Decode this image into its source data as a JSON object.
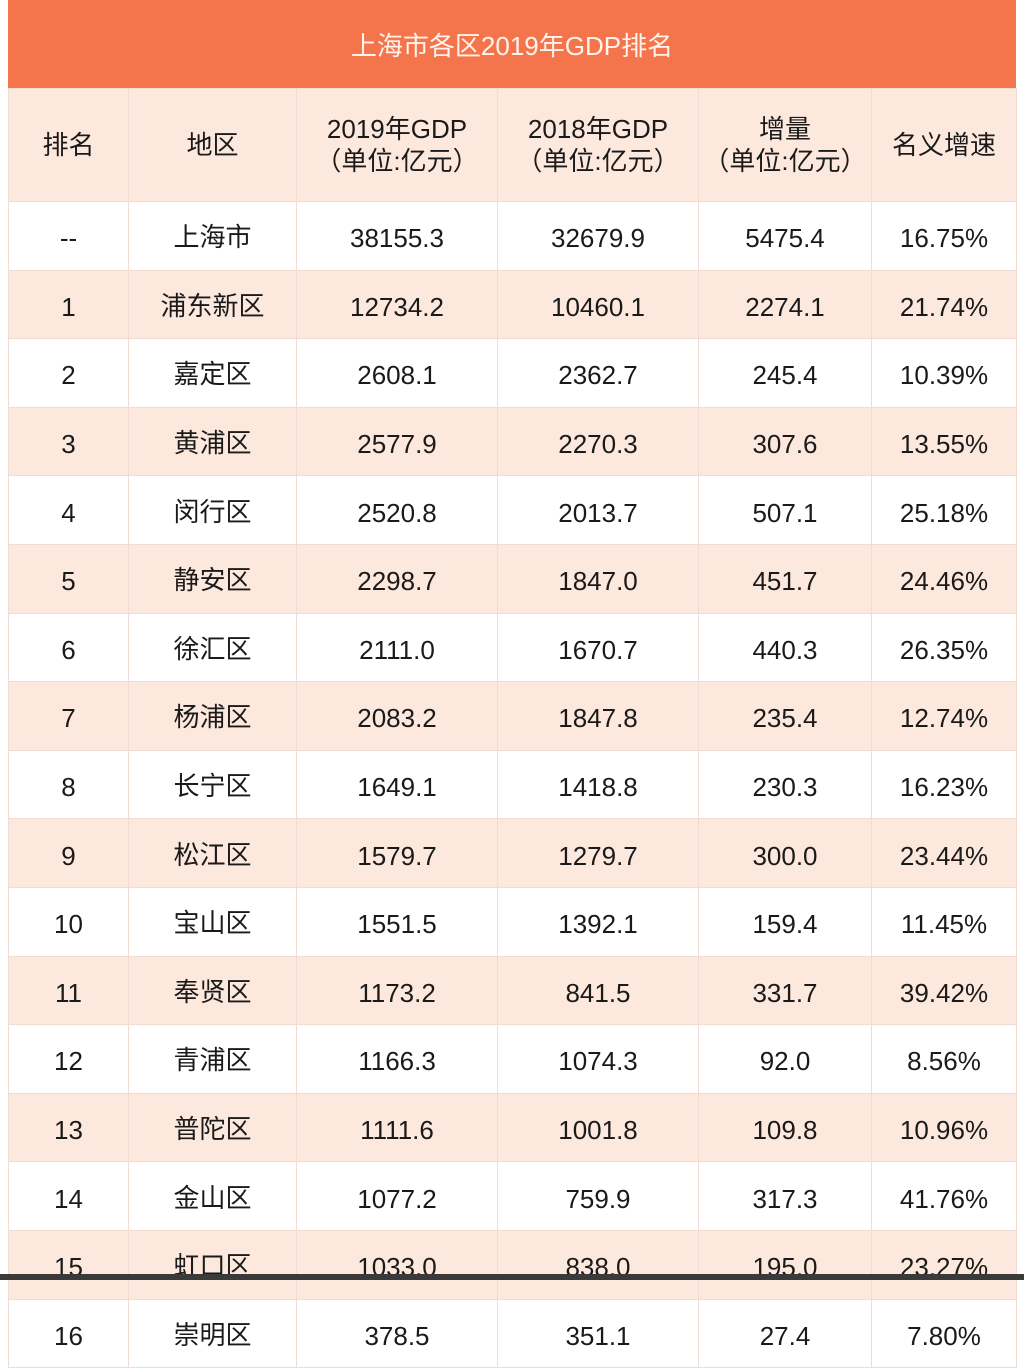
{
  "title": "上海市各区2019年GDP排名",
  "headers": [
    {
      "line1": "排名",
      "line2": ""
    },
    {
      "line1": "地区",
      "line2": ""
    },
    {
      "line1": "2019年GDP",
      "line2": "（单位:亿元）"
    },
    {
      "line1": "2018年GDP",
      "line2": "（单位:亿元）"
    },
    {
      "line1": "增量",
      "line2": "（单位:亿元）"
    },
    {
      "line1": "名义增速",
      "line2": ""
    }
  ],
  "rows": [
    [
      "--",
      "上海市",
      "38155.3",
      "32679.9",
      "5475.4",
      "16.75%"
    ],
    [
      "1",
      "浦东新区",
      "12734.2",
      "10460.1",
      "2274.1",
      "21.74%"
    ],
    [
      "2",
      "嘉定区",
      "2608.1",
      "2362.7",
      "245.4",
      "10.39%"
    ],
    [
      "3",
      "黄浦区",
      "2577.9",
      "2270.3",
      "307.6",
      "13.55%"
    ],
    [
      "4",
      "闵行区",
      "2520.8",
      "2013.7",
      "507.1",
      "25.18%"
    ],
    [
      "5",
      "静安区",
      "2298.7",
      "1847.0",
      "451.7",
      "24.46%"
    ],
    [
      "6",
      "徐汇区",
      "2111.0",
      "1670.7",
      "440.3",
      "26.35%"
    ],
    [
      "7",
      "杨浦区",
      "2083.2",
      "1847.8",
      "235.4",
      "12.74%"
    ],
    [
      "8",
      "长宁区",
      "1649.1",
      "1418.8",
      "230.3",
      "16.23%"
    ],
    [
      "9",
      "松江区",
      "1579.7",
      "1279.7",
      "300.0",
      "23.44%"
    ],
    [
      "10",
      "宝山区",
      "1551.5",
      "1392.1",
      "159.4",
      "11.45%"
    ],
    [
      "11",
      "奉贤区",
      "1173.2",
      "841.5",
      "331.7",
      "39.42%"
    ],
    [
      "12",
      "青浦区",
      "1166.3",
      "1074.3",
      "92.0",
      "8.56%"
    ],
    [
      "13",
      "普陀区",
      "1111.6",
      "1001.8",
      "109.8",
      "10.96%"
    ],
    [
      "14",
      "金山区",
      "1077.2",
      "759.9",
      "317.3",
      "41.76%"
    ],
    [
      "15",
      "虹口区",
      "1033.0",
      "838.0",
      "195.0",
      "23.27%"
    ],
    [
      "16",
      "崇明区",
      "378.5",
      "351.1",
      "27.4",
      "7.80%"
    ]
  ],
  "colors": {
    "title_bg": "#f4754b",
    "header_bg": "#fde8dd",
    "stripe_bg": "#fde8dd",
    "row_bg": "#ffffff"
  },
  "chart_data": {
    "type": "table",
    "title": "上海市各区2019年GDP排名",
    "columns": [
      "排名",
      "地区",
      "2019年GDP（单位:亿元）",
      "2018年GDP（单位:亿元）",
      "增量（单位:亿元）",
      "名义增速"
    ],
    "categories": [
      "上海市",
      "浦东新区",
      "嘉定区",
      "黄浦区",
      "闵行区",
      "静安区",
      "徐汇区",
      "杨浦区",
      "长宁区",
      "松江区",
      "宝山区",
      "奉贤区",
      "青浦区",
      "普陀区",
      "金山区",
      "虹口区",
      "崇明区"
    ],
    "series": [
      {
        "name": "2019年GDP",
        "values": [
          38155.3,
          12734.2,
          2608.1,
          2577.9,
          2520.8,
          2298.7,
          2111.0,
          2083.2,
          1649.1,
          1579.7,
          1551.5,
          1173.2,
          1166.3,
          1111.6,
          1077.2,
          1033.0,
          378.5
        ]
      },
      {
        "name": "2018年GDP",
        "values": [
          32679.9,
          10460.1,
          2362.7,
          2270.3,
          2013.7,
          1847.0,
          1670.7,
          1847.8,
          1418.8,
          1279.7,
          1392.1,
          841.5,
          1074.3,
          1001.8,
          759.9,
          838.0,
          351.1
        ]
      },
      {
        "name": "增量",
        "values": [
          5475.4,
          2274.1,
          245.4,
          307.6,
          507.1,
          451.7,
          440.3,
          235.4,
          230.3,
          300.0,
          159.4,
          331.7,
          92.0,
          109.8,
          317.3,
          195.0,
          27.4
        ]
      },
      {
        "name": "名义增速(%)",
        "values": [
          16.75,
          21.74,
          10.39,
          13.55,
          25.18,
          24.46,
          26.35,
          12.74,
          16.23,
          23.44,
          11.45,
          39.42,
          8.56,
          10.96,
          41.76,
          23.27,
          7.8
        ]
      }
    ]
  }
}
